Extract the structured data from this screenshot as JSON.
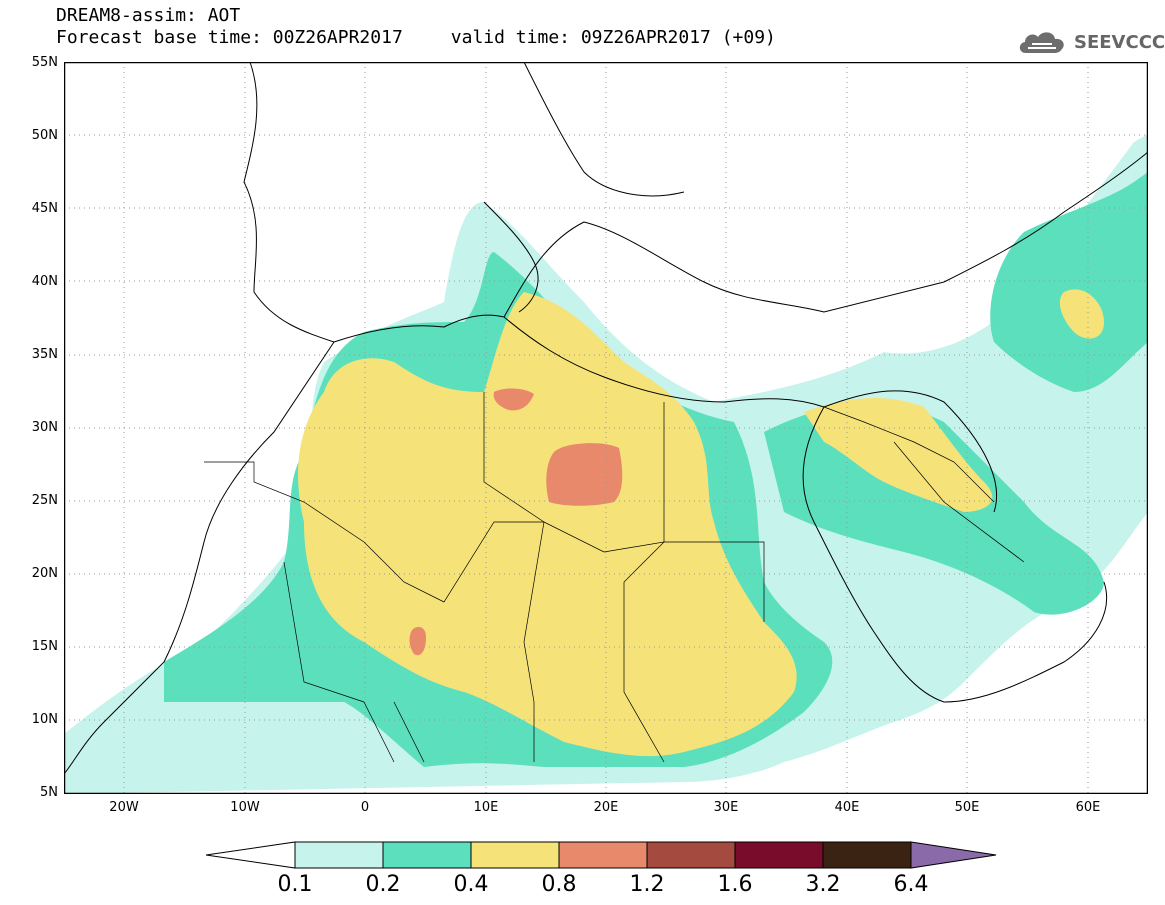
{
  "title": {
    "line1": "DREAM8-assim: AOT",
    "base_time": "Forecast base time: 00Z26APR2017",
    "valid_time": "valid time: 09Z26APR2017 (+09)"
  },
  "logo": {
    "text": "SEEVCCC",
    "icon": "cloud-icon"
  },
  "axes": {
    "lat_ticks": [
      "55N",
      "50N",
      "45N",
      "40N",
      "35N",
      "30N",
      "25N",
      "20N",
      "15N",
      "10N",
      "5N"
    ],
    "lon_ticks": [
      "20W",
      "10W",
      "0",
      "10E",
      "20E",
      "30E",
      "40E",
      "50E",
      "60E"
    ],
    "lon_range": [
      -25,
      65
    ],
    "lat_range": [
      5,
      55
    ]
  },
  "colorbar": {
    "labels": [
      "0.1",
      "0.2",
      "0.4",
      "0.8",
      "1.2",
      "1.6",
      "3.2",
      "6.4"
    ],
    "colors": [
      "#ffffff",
      "#c6f3ec",
      "#5bdfbd",
      "#f5e37a",
      "#e8896b",
      "#a44a3f",
      "#7a0c2b",
      "#3b2314",
      "#8a6aa8"
    ]
  }
}
